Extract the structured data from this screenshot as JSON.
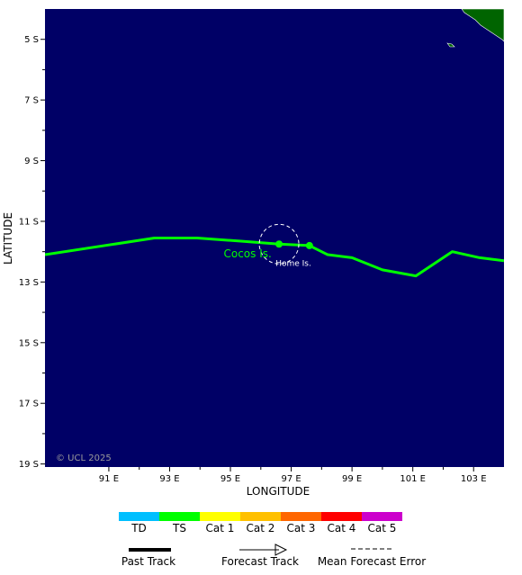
{
  "axes": {
    "x_title": "LONGITUDE",
    "y_title": "LATITUDE",
    "lat_ticks": [
      {
        "lat": -5,
        "label": "5 S"
      },
      {
        "lat": -7,
        "label": "7 S"
      },
      {
        "lat": -9,
        "label": "9 S"
      },
      {
        "lat": -11,
        "label": "11 S"
      },
      {
        "lat": -13,
        "label": "13 S"
      },
      {
        "lat": -15,
        "label": "15 S"
      },
      {
        "lat": -17,
        "label": "17 S"
      },
      {
        "lat": -19,
        "label": "19 S"
      }
    ],
    "lon_ticks": [
      {
        "lon": 91,
        "label": "91 E"
      },
      {
        "lon": 93,
        "label": "93 E"
      },
      {
        "lon": 95,
        "label": "95 E"
      },
      {
        "lon": 97,
        "label": "97 E"
      },
      {
        "lon": 99,
        "label": "99 E"
      },
      {
        "lon": 101,
        "label": "101 E"
      },
      {
        "lon": 103,
        "label": "103 E"
      }
    ],
    "lon_range": [
      88.9,
      104.0
    ],
    "lat_range": [
      -19.1,
      -4.0
    ]
  },
  "colors": {
    "ocean": "#000066",
    "land": "#006400",
    "ts_track": "#00ff00",
    "label_green": "#00ff00",
    "label_white": "#ffffff"
  },
  "places": [
    {
      "name": "Cocos Is.",
      "lon": 96.8,
      "lat": -12.1,
      "color": "label_green"
    },
    {
      "name": "Home Is.",
      "lon": 96.9,
      "lat": -12.2,
      "color": "label_white"
    }
  ],
  "track": {
    "category": "TS",
    "points": [
      {
        "lon": 88.9,
        "lat": -12.1
      },
      {
        "lon": 92.5,
        "lat": -11.55
      },
      {
        "lon": 93.9,
        "lat": -11.55
      },
      {
        "lon": 95.3,
        "lat": -11.65
      },
      {
        "lon": 96.6,
        "lat": -11.75
      },
      {
        "lon": 97.6,
        "lat": -11.8
      },
      {
        "lon": 98.2,
        "lat": -12.1
      },
      {
        "lon": 99.0,
        "lat": -12.2
      },
      {
        "lon": 100.0,
        "lat": -12.6
      },
      {
        "lon": 101.1,
        "lat": -12.8
      },
      {
        "lon": 102.3,
        "lat": -12.0
      },
      {
        "lon": 103.2,
        "lat": -12.2
      },
      {
        "lon": 104.0,
        "lat": -12.3
      }
    ],
    "markers": [
      {
        "lon": 96.6,
        "lat": -11.75
      },
      {
        "lon": 97.6,
        "lat": -11.8
      }
    ],
    "error_circle": {
      "lon": 96.6,
      "lat": -11.75,
      "radius_deg": 0.65
    }
  },
  "copyright": "© UCL 2025",
  "legend": {
    "categories": [
      {
        "label": "TD",
        "color": "#00bfff"
      },
      {
        "label": "TS",
        "color": "#00ff00"
      },
      {
        "label": "Cat 1",
        "color": "#ffff00"
      },
      {
        "label": "Cat 2",
        "color": "#ffc000"
      },
      {
        "label": "Cat 3",
        "color": "#ff6600"
      },
      {
        "label": "Cat 4",
        "color": "#ff0000"
      },
      {
        "label": "Cat 5",
        "color": "#cc00cc"
      }
    ],
    "past_track": "Past Track",
    "forecast_track": "Forecast Track",
    "mean_forecast_error": "Mean Forecast Error"
  }
}
